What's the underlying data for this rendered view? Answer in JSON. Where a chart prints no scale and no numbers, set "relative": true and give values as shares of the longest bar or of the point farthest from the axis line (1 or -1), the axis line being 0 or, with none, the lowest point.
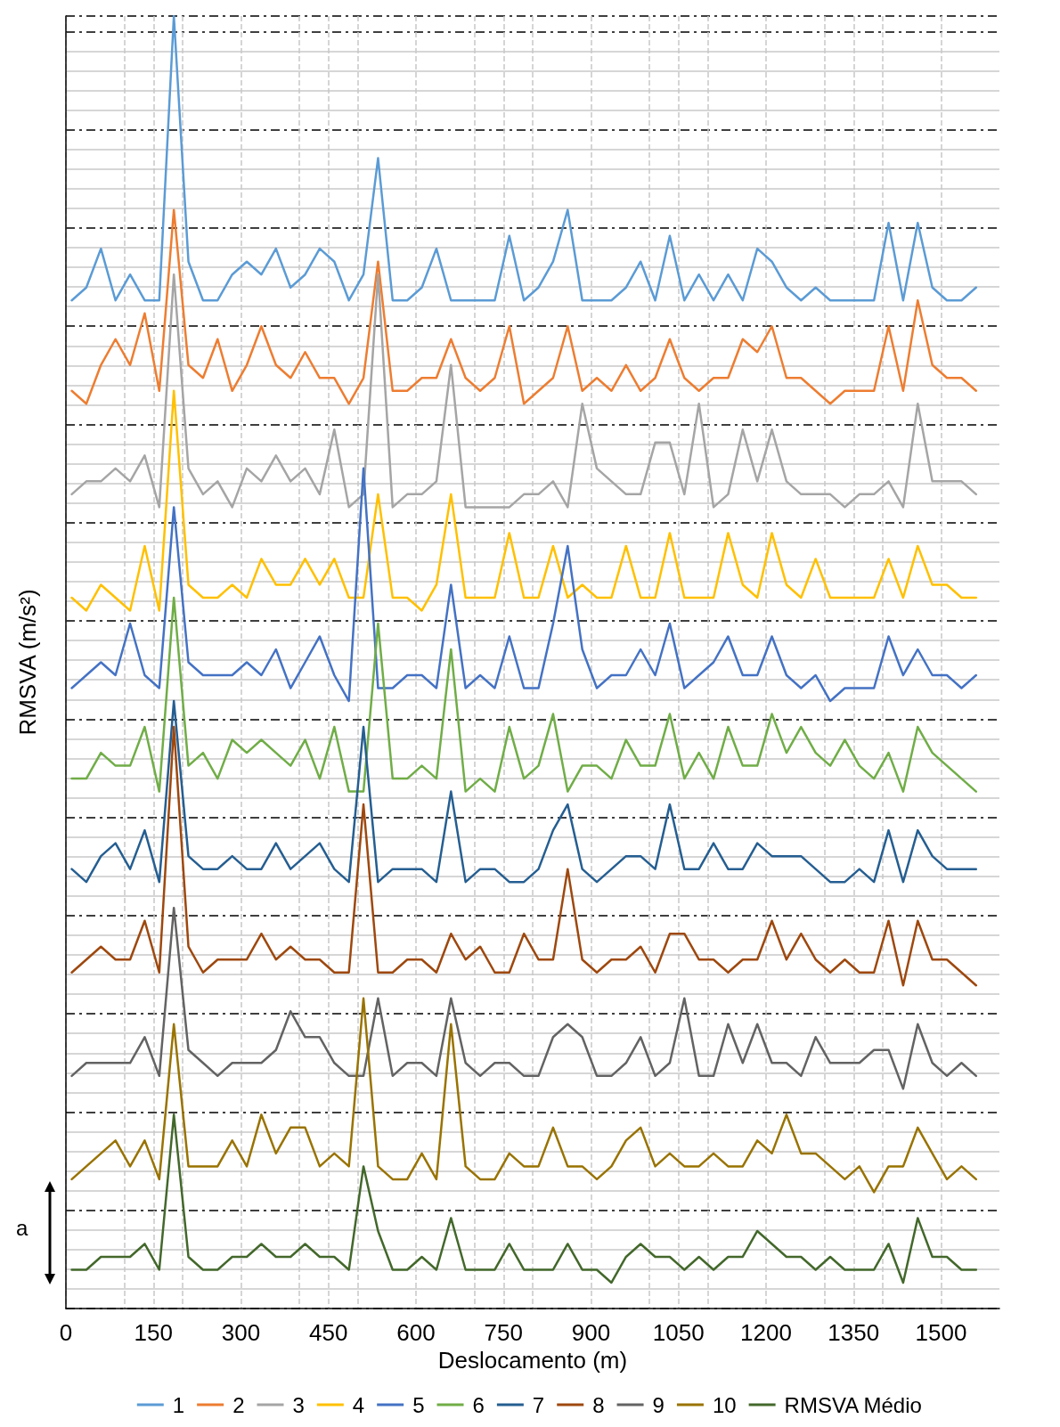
{
  "chart_data": {
    "type": "line",
    "relative": true,
    "xlabel": "Deslocamento (m)",
    "ylabel": "RMSVA (m/s²)",
    "annotations": [
      "a"
    ],
    "xlim": [
      0,
      1600
    ],
    "xticks": [
      0,
      150,
      300,
      450,
      600,
      750,
      900,
      1050,
      1200,
      1350,
      1500
    ],
    "grid": true,
    "legend": "bottom",
    "marker": "none",
    "line_style": "solid",
    "x": [
      10,
      35,
      60,
      85,
      110,
      135,
      160,
      185,
      210,
      235,
      260,
      285,
      310,
      335,
      360,
      385,
      410,
      435,
      460,
      485,
      510,
      535,
      560,
      585,
      610,
      635,
      660,
      685,
      710,
      735,
      760,
      785,
      810,
      835,
      860,
      885,
      910,
      935,
      960,
      985,
      1010,
      1035,
      1060,
      1085,
      1110,
      1135,
      1160,
      1185,
      1210,
      1235,
      1260,
      1285,
      1310,
      1335,
      1360,
      1385,
      1410,
      1435,
      1460,
      1485,
      1510,
      1535,
      1560
    ],
    "series": [
      {
        "name": "1",
        "color": "#5b9bd5",
        "values": [
          0.78,
          0.79,
          0.82,
          0.78,
          0.8,
          0.78,
          0.78,
          1,
          0.81,
          0.78,
          0.78,
          0.8,
          0.81,
          0.8,
          0.82,
          0.79,
          0.8,
          0.82,
          0.81,
          0.78,
          0.8,
          0.89,
          0.78,
          0.78,
          0.79,
          0.82,
          0.78,
          0.78,
          0.78,
          0.78,
          0.83,
          0.78,
          0.79,
          0.81,
          0.85,
          0.78,
          0.78,
          0.78,
          0.79,
          0.81,
          0.78,
          0.83,
          0.78,
          0.8,
          0.78,
          0.8,
          0.78,
          0.82,
          0.81,
          0.79,
          0.78,
          0.79,
          0.78,
          0.78,
          0.78,
          0.78,
          0.84,
          0.78,
          0.84,
          0.79,
          0.78,
          0.78,
          0.79
        ]
      },
      {
        "name": "2",
        "color": "#ed7d31",
        "values": [
          0.71,
          0.7,
          0.73,
          0.75,
          0.73,
          0.77,
          0.71,
          0.85,
          0.73,
          0.72,
          0.75,
          0.71,
          0.73,
          0.76,
          0.73,
          0.72,
          0.74,
          0.72,
          0.72,
          0.7,
          0.72,
          0.81,
          0.71,
          0.71,
          0.72,
          0.72,
          0.75,
          0.72,
          0.71,
          0.72,
          0.76,
          0.7,
          0.71,
          0.72,
          0.76,
          0.71,
          0.72,
          0.71,
          0.73,
          0.71,
          0.72,
          0.75,
          0.72,
          0.71,
          0.72,
          0.72,
          0.75,
          0.74,
          0.76,
          0.72,
          0.72,
          0.71,
          0.7,
          0.71,
          0.71,
          0.71,
          0.76,
          0.71,
          0.78,
          0.73,
          0.72,
          0.72,
          0.71
        ]
      },
      {
        "name": "3",
        "color": "#a5a5a5",
        "values": [
          0.63,
          0.64,
          0.64,
          0.65,
          0.64,
          0.66,
          0.62,
          0.8,
          0.65,
          0.63,
          0.64,
          0.62,
          0.65,
          0.64,
          0.66,
          0.64,
          0.65,
          0.63,
          0.68,
          0.62,
          0.63,
          0.8,
          0.62,
          0.63,
          0.63,
          0.64,
          0.73,
          0.62,
          0.62,
          0.62,
          0.62,
          0.63,
          0.63,
          0.64,
          0.62,
          0.7,
          0.65,
          0.64,
          0.63,
          0.63,
          0.67,
          0.67,
          0.63,
          0.7,
          0.62,
          0.63,
          0.68,
          0.64,
          0.68,
          0.64,
          0.63,
          0.63,
          0.63,
          0.62,
          0.63,
          0.63,
          0.64,
          0.62,
          0.7,
          0.64,
          0.64,
          0.64,
          0.63
        ]
      },
      {
        "name": "4",
        "color": "#ffc000",
        "values": [
          0.55,
          0.54,
          0.56,
          0.55,
          0.54,
          0.59,
          0.54,
          0.71,
          0.56,
          0.55,
          0.55,
          0.56,
          0.55,
          0.58,
          0.56,
          0.56,
          0.58,
          0.56,
          0.58,
          0.55,
          0.55,
          0.63,
          0.55,
          0.55,
          0.54,
          0.56,
          0.63,
          0.55,
          0.55,
          0.55,
          0.6,
          0.55,
          0.55,
          0.59,
          0.55,
          0.56,
          0.55,
          0.55,
          0.59,
          0.55,
          0.55,
          0.6,
          0.55,
          0.55,
          0.55,
          0.6,
          0.56,
          0.55,
          0.6,
          0.56,
          0.55,
          0.58,
          0.55,
          0.55,
          0.55,
          0.55,
          0.58,
          0.55,
          0.59,
          0.56,
          0.56,
          0.55,
          0.55
        ]
      },
      {
        "name": "5",
        "color": "#4472c4",
        "values": [
          0.48,
          0.49,
          0.5,
          0.49,
          0.53,
          0.49,
          0.48,
          0.62,
          0.5,
          0.49,
          0.49,
          0.49,
          0.5,
          0.49,
          0.51,
          0.48,
          0.5,
          0.52,
          0.49,
          0.47,
          0.65,
          0.48,
          0.48,
          0.49,
          0.49,
          0.48,
          0.56,
          0.48,
          0.49,
          0.48,
          0.52,
          0.48,
          0.48,
          0.53,
          0.59,
          0.51,
          0.48,
          0.49,
          0.49,
          0.51,
          0.49,
          0.53,
          0.48,
          0.49,
          0.5,
          0.52,
          0.49,
          0.49,
          0.52,
          0.49,
          0.48,
          0.49,
          0.47,
          0.48,
          0.48,
          0.48,
          0.52,
          0.49,
          0.51,
          0.49,
          0.49,
          0.48,
          0.49
        ]
      },
      {
        "name": "6",
        "color": "#70ad47",
        "values": [
          0.41,
          0.41,
          0.43,
          0.42,
          0.42,
          0.45,
          0.4,
          0.55,
          0.42,
          0.43,
          0.41,
          0.44,
          0.43,
          0.44,
          0.43,
          0.42,
          0.44,
          0.41,
          0.45,
          0.4,
          0.4,
          0.53,
          0.41,
          0.41,
          0.42,
          0.41,
          0.51,
          0.4,
          0.41,
          0.4,
          0.45,
          0.41,
          0.42,
          0.46,
          0.4,
          0.42,
          0.42,
          0.41,
          0.44,
          0.42,
          0.42,
          0.46,
          0.41,
          0.43,
          0.41,
          0.45,
          0.42,
          0.42,
          0.46,
          0.43,
          0.45,
          0.43,
          0.42,
          0.44,
          0.42,
          0.41,
          0.43,
          0.4,
          0.45,
          0.43,
          0.42,
          0.41,
          0.4
        ]
      },
      {
        "name": "7",
        "color": "#255e91",
        "values": [
          0.34,
          0.33,
          0.35,
          0.36,
          0.34,
          0.37,
          0.33,
          0.47,
          0.35,
          0.34,
          0.34,
          0.35,
          0.34,
          0.34,
          0.36,
          0.34,
          0.35,
          0.36,
          0.34,
          0.33,
          0.45,
          0.33,
          0.34,
          0.34,
          0.34,
          0.33,
          0.4,
          0.33,
          0.34,
          0.34,
          0.33,
          0.33,
          0.34,
          0.37,
          0.39,
          0.34,
          0.33,
          0.34,
          0.35,
          0.35,
          0.34,
          0.39,
          0.34,
          0.34,
          0.36,
          0.34,
          0.34,
          0.36,
          0.35,
          0.35,
          0.35,
          0.34,
          0.33,
          0.33,
          0.34,
          0.33,
          0.37,
          0.33,
          0.37,
          0.35,
          0.34,
          0.34,
          0.34
        ]
      },
      {
        "name": "8",
        "color": "#9e480e",
        "values": [
          0.26,
          0.27,
          0.28,
          0.27,
          0.27,
          0.3,
          0.26,
          0.45,
          0.28,
          0.26,
          0.27,
          0.27,
          0.27,
          0.29,
          0.27,
          0.28,
          0.27,
          0.27,
          0.26,
          0.26,
          0.39,
          0.26,
          0.26,
          0.27,
          0.27,
          0.26,
          0.29,
          0.27,
          0.28,
          0.26,
          0.26,
          0.29,
          0.27,
          0.27,
          0.34,
          0.27,
          0.26,
          0.27,
          0.27,
          0.28,
          0.26,
          0.29,
          0.29,
          0.27,
          0.27,
          0.26,
          0.27,
          0.27,
          0.3,
          0.27,
          0.29,
          0.27,
          0.26,
          0.27,
          0.26,
          0.26,
          0.3,
          0.25,
          0.3,
          0.27,
          0.27,
          0.26,
          0.25
        ]
      },
      {
        "name": "9",
        "color": "#636363",
        "values": [
          0.18,
          0.19,
          0.19,
          0.19,
          0.19,
          0.21,
          0.18,
          0.31,
          0.2,
          0.19,
          0.18,
          0.19,
          0.19,
          0.19,
          0.2,
          0.23,
          0.21,
          0.21,
          0.19,
          0.18,
          0.18,
          0.24,
          0.18,
          0.19,
          0.19,
          0.18,
          0.24,
          0.19,
          0.18,
          0.19,
          0.19,
          0.18,
          0.18,
          0.21,
          0.22,
          0.21,
          0.18,
          0.18,
          0.19,
          0.21,
          0.18,
          0.19,
          0.24,
          0.18,
          0.18,
          0.22,
          0.19,
          0.22,
          0.19,
          0.19,
          0.18,
          0.21,
          0.19,
          0.19,
          0.19,
          0.2,
          0.2,
          0.17,
          0.22,
          0.19,
          0.18,
          0.19,
          0.18
        ]
      },
      {
        "name": "10",
        "color": "#997300",
        "values": [
          0.1,
          0.11,
          0.12,
          0.13,
          0.11,
          0.13,
          0.1,
          0.22,
          0.11,
          0.11,
          0.11,
          0.13,
          0.11,
          0.15,
          0.12,
          0.14,
          0.14,
          0.11,
          0.12,
          0.11,
          0.24,
          0.11,
          0.1,
          0.1,
          0.12,
          0.1,
          0.22,
          0.11,
          0.1,
          0.1,
          0.12,
          0.11,
          0.11,
          0.14,
          0.11,
          0.11,
          0.1,
          0.11,
          0.13,
          0.14,
          0.11,
          0.12,
          0.11,
          0.11,
          0.12,
          0.11,
          0.11,
          0.13,
          0.12,
          0.15,
          0.12,
          0.12,
          0.11,
          0.1,
          0.11,
          0.09,
          0.11,
          0.11,
          0.14,
          0.12,
          0.1,
          0.11,
          0.1
        ]
      },
      {
        "name": "RMSVA Médio",
        "color": "#43682b",
        "values": [
          0.03,
          0.03,
          0.04,
          0.04,
          0.04,
          0.05,
          0.03,
          0.15,
          0.04,
          0.03,
          0.03,
          0.04,
          0.04,
          0.05,
          0.04,
          0.04,
          0.05,
          0.04,
          0.04,
          0.03,
          0.11,
          0.06,
          0.03,
          0.03,
          0.04,
          0.03,
          0.07,
          0.03,
          0.03,
          0.03,
          0.05,
          0.03,
          0.03,
          0.03,
          0.05,
          0.03,
          0.03,
          0.02,
          0.04,
          0.05,
          0.04,
          0.04,
          0.03,
          0.04,
          0.03,
          0.04,
          0.04,
          0.06,
          0.05,
          0.04,
          0.04,
          0.03,
          0.04,
          0.03,
          0.03,
          0.03,
          0.05,
          0.02,
          0.07,
          0.04,
          0.04,
          0.03,
          0.03
        ]
      }
    ]
  }
}
